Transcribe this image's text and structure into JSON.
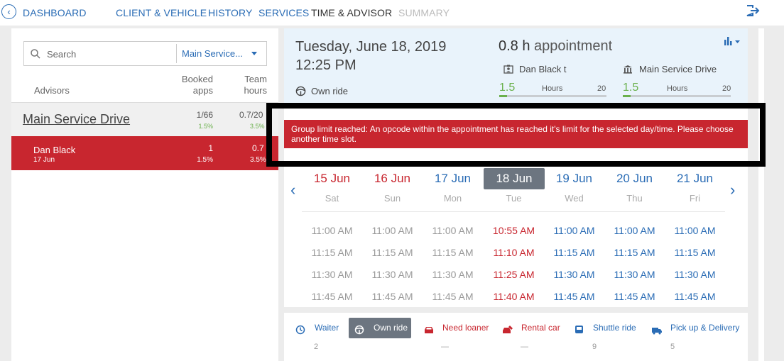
{
  "nav": {
    "back_icon": "chevron-left-icon",
    "items": [
      {
        "label": "DASHBOARD",
        "state": "link"
      },
      {
        "label": "CLIENT & VEHICLE",
        "state": "link"
      },
      {
        "label": "HISTORY",
        "state": "link"
      },
      {
        "label": "SERVICES",
        "state": "link"
      },
      {
        "label": "TIME & ADVISOR",
        "state": "active"
      },
      {
        "label": "SUMMARY",
        "state": "disabled"
      }
    ],
    "logout_icon": "logout-icon"
  },
  "left": {
    "search_placeholder": "Search",
    "filter_value": "Main Service...",
    "col_advisors": "Advisors",
    "col_booked_l1": "Booked",
    "col_booked_l2": "apps",
    "col_team_l1": "Team",
    "col_team_l2": "hours",
    "group": {
      "name": "Main Service Drive",
      "booked": "1/66",
      "booked_pct": "1.5%",
      "team": "0.7/20",
      "team_pct": "3.5%"
    },
    "advisor": {
      "name": "Dan Black",
      "date": "17 Jun",
      "booked": "1",
      "booked_pct": "1.5%",
      "team": "0.7",
      "team_pct": "3.5%"
    }
  },
  "info": {
    "date": "Tuesday, June 18, 2019",
    "time": "12:25 PM",
    "ride": "Own ride",
    "duration": "0.8 h",
    "duration_suffix": "appointment",
    "advisor": "Dan Black ",
    "advisor_suffix": "t",
    "drive": "Main Service Drive",
    "adv_hours": "1.5",
    "adv_hours_label": "Hours",
    "adv_max": "20",
    "drive_hours": "1.5",
    "drive_hours_label": "Hours",
    "drive_max": "20",
    "adv_fill": 0.075,
    "drive_fill": 0.075
  },
  "error": "Group limit reached: An opcode within the appointment has reached it's limit for the selected day/time. Please choose another time slot.",
  "calendar": {
    "days": [
      {
        "date": "15 Jun",
        "weekday": "Sat",
        "state": "past"
      },
      {
        "date": "16 Jun",
        "weekday": "Sun",
        "state": "past"
      },
      {
        "date": "17 Jun",
        "weekday": "Mon",
        "state": "future"
      },
      {
        "date": "18 Jun",
        "weekday": "Tue",
        "state": "selected"
      },
      {
        "date": "19 Jun",
        "weekday": "Wed",
        "state": "future"
      },
      {
        "date": "20 Jun",
        "weekday": "Thu",
        "state": "future"
      },
      {
        "date": "21 Jun",
        "weekday": "Fri",
        "state": "future"
      }
    ],
    "slots": [
      [
        "11:00 AM",
        "11:00 AM",
        "11:00 AM",
        "10:55 AM",
        "11:00 AM",
        "11:00 AM",
        "11:00 AM"
      ],
      [
        "11:15 AM",
        "11:15 AM",
        "11:15 AM",
        "11:10 AM",
        "11:15 AM",
        "11:15 AM",
        "11:15 AM"
      ],
      [
        "11:30 AM",
        "11:30 AM",
        "11:30 AM",
        "11:25 AM",
        "11:30 AM",
        "11:30 AM",
        "11:30 AM"
      ],
      [
        "11:45 AM",
        "11:45 AM",
        "11:45 AM",
        "11:40 AM",
        "11:45 AM",
        "11:45 AM",
        "11:45 AM"
      ]
    ],
    "slot_styles": [
      "g",
      "g",
      "g",
      "r",
      "b",
      "b",
      "b"
    ]
  },
  "transport": [
    {
      "label": "Waiter",
      "icon": "clock-icon",
      "count": "2",
      "color": "#2a6cb5"
    },
    {
      "label": "Own ride",
      "icon": "steering-wheel-icon",
      "count": "",
      "color": "#ffffff",
      "selected": true
    },
    {
      "label": "Need loaner",
      "icon": "car-icon",
      "count": "—",
      "color": "#c8262f"
    },
    {
      "label": "Rental car",
      "icon": "rental-car-icon",
      "count": "—",
      "color": "#c8262f"
    },
    {
      "label": "Shuttle ride",
      "icon": "shuttle-icon",
      "count": "9",
      "color": "#2a6cb5"
    },
    {
      "label": "Pick up & Delivery",
      "icon": "pickup-delivery-icon",
      "count": "5",
      "color": "#2a6cb5"
    }
  ],
  "colors": {
    "accent": "#2a6cb5",
    "danger": "#c8262f",
    "good": "#6ab04c",
    "selected": "#6c7580"
  }
}
